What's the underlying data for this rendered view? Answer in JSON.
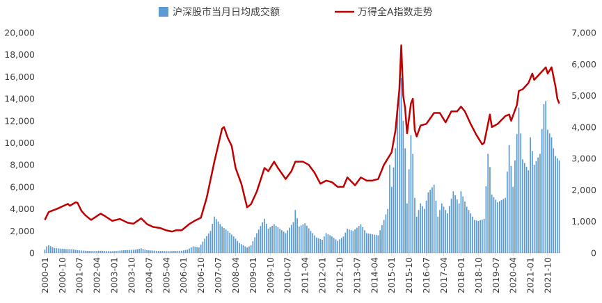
{
  "chart_data": {
    "type": "bar+line",
    "title": "",
    "legend": {
      "position": "top",
      "entries": [
        {
          "name": "沪深股市当月日均成交额",
          "color": "#5B9BD5",
          "kind": "bar"
        },
        {
          "name": "万得全A指数走势",
          "color": "#C00000",
          "kind": "line"
        }
      ]
    },
    "x_tick_labels": [
      "2000-01",
      "2000-10",
      "2001-07",
      "2002-04",
      "2003-01",
      "2003-10",
      "2004-07",
      "2005-04",
      "2006-01",
      "2006-10",
      "2007-07",
      "2008-04",
      "2009-01",
      "2009-10",
      "2010-07",
      "2011-04",
      "2012-01",
      "2012-10",
      "2013-07",
      "2014-04",
      "2015-01",
      "2015-10",
      "2016-07",
      "2017-04",
      "2018-01",
      "2018-10",
      "2019-07",
      "2020-04",
      "2021-01",
      "2021-10"
    ],
    "x_range": [
      "2000-01",
      "2022-04"
    ],
    "y_left": {
      "min": 0,
      "max": 20000,
      "step": 2000,
      "tick_labels": [
        "0",
        "2,000",
        "4,000",
        "6,000",
        "8,000",
        "10,000",
        "12,000",
        "14,000",
        "16,000",
        "18,000",
        "20,000"
      ]
    },
    "y_right": {
      "min": 0,
      "max": 7000,
      "step": 1000,
      "tick_labels": [
        "0",
        "1,000",
        "2,000",
        "3,000",
        "4,000",
        "5,000",
        "6,000",
        "7,000"
      ]
    },
    "series": [
      {
        "name": "沪深股市当月日均成交额",
        "axis": "left",
        "color": "#5B9BD5",
        "anchors": [
          [
            "2000-01",
            300
          ],
          [
            "2000-02",
            600
          ],
          [
            "2000-03",
            700
          ],
          [
            "2000-06",
            450
          ],
          [
            "2000-12",
            350
          ],
          [
            "2001-03",
            350
          ],
          [
            "2001-06",
            250
          ],
          [
            "2001-12",
            180
          ],
          [
            "2002-06",
            200
          ],
          [
            "2002-12",
            150
          ],
          [
            "2003-06",
            250
          ],
          [
            "2003-12",
            300
          ],
          [
            "2004-03",
            420
          ],
          [
            "2004-06",
            250
          ],
          [
            "2004-12",
            180
          ],
          [
            "2005-06",
            170
          ],
          [
            "2005-12",
            200
          ],
          [
            "2006-03",
            300
          ],
          [
            "2006-06",
            600
          ],
          [
            "2006-09",
            500
          ],
          [
            "2006-12",
            1300
          ],
          [
            "2007-03",
            2000
          ],
          [
            "2007-05",
            3300
          ],
          [
            "2007-09",
            2400
          ],
          [
            "2007-12",
            2000
          ],
          [
            "2008-03",
            1500
          ],
          [
            "2008-06",
            900
          ],
          [
            "2008-10",
            500
          ],
          [
            "2008-12",
            700
          ],
          [
            "2009-03",
            1800
          ],
          [
            "2009-07",
            3100
          ],
          [
            "2009-09",
            2200
          ],
          [
            "2009-12",
            2600
          ],
          [
            "2010-03",
            2200
          ],
          [
            "2010-06",
            1800
          ],
          [
            "2010-10",
            2800
          ],
          [
            "2010-11",
            3900
          ],
          [
            "2011-01",
            2400
          ],
          [
            "2011-04",
            2700
          ],
          [
            "2011-07",
            2000
          ],
          [
            "2011-10",
            1400
          ],
          [
            "2012-01",
            1200
          ],
          [
            "2012-03",
            1800
          ],
          [
            "2012-06",
            1500
          ],
          [
            "2012-09",
            1100
          ],
          [
            "2012-12",
            1500
          ],
          [
            "2013-02",
            2200
          ],
          [
            "2013-05",
            2000
          ],
          [
            "2013-09",
            2600
          ],
          [
            "2013-12",
            1800
          ],
          [
            "2014-03",
            1700
          ],
          [
            "2014-06",
            1600
          ],
          [
            "2014-09",
            3000
          ],
          [
            "2014-11",
            4000
          ],
          [
            "2014-12",
            8000
          ],
          [
            "2015-01",
            6000
          ],
          [
            "2015-03",
            9500
          ],
          [
            "2015-04",
            13500
          ],
          [
            "2015-05",
            15700
          ],
          [
            "2015-06",
            15900
          ],
          [
            "2015-07",
            12000
          ],
          [
            "2015-08",
            9500
          ],
          [
            "2015-09",
            4500
          ],
          [
            "2015-11",
            10700
          ],
          [
            "2015-12",
            9000
          ],
          [
            "2016-01",
            5000
          ],
          [
            "2016-02",
            3300
          ],
          [
            "2016-04",
            4500
          ],
          [
            "2016-06",
            4000
          ],
          [
            "2016-08",
            5500
          ],
          [
            "2016-11",
            6200
          ],
          [
            "2017-01",
            3300
          ],
          [
            "2017-03",
            4500
          ],
          [
            "2017-06",
            3600
          ],
          [
            "2017-09",
            5600
          ],
          [
            "2017-12",
            4500
          ],
          [
            "2018-01",
            5600
          ],
          [
            "2018-04",
            4200
          ],
          [
            "2018-08",
            3000
          ],
          [
            "2018-10",
            2900
          ],
          [
            "2019-01",
            3100
          ],
          [
            "2019-03",
            9000
          ],
          [
            "2019-04",
            7800
          ],
          [
            "2019-05",
            5300
          ],
          [
            "2019-08",
            4600
          ],
          [
            "2019-12",
            5000
          ],
          [
            "2020-02",
            9800
          ],
          [
            "2020-04",
            6000
          ],
          [
            "2020-07",
            13200
          ],
          [
            "2020-09",
            8500
          ],
          [
            "2020-12",
            7500
          ],
          [
            "2021-01",
            10500
          ],
          [
            "2021-03",
            8000
          ],
          [
            "2021-06",
            9000
          ],
          [
            "2021-08",
            13500
          ],
          [
            "2021-09",
            13800
          ],
          [
            "2021-10",
            11200
          ],
          [
            "2021-12",
            10500
          ],
          [
            "2022-01",
            9500
          ],
          [
            "2022-02",
            8800
          ],
          [
            "2022-04",
            8400
          ]
        ]
      },
      {
        "name": "万得全A指数走势",
        "axis": "right",
        "color": "#C00000",
        "anchors": [
          [
            "2000-01",
            1050
          ],
          [
            "2000-03",
            1300
          ],
          [
            "2000-08",
            1420
          ],
          [
            "2001-01",
            1560
          ],
          [
            "2001-02",
            1500
          ],
          [
            "2001-05",
            1610
          ],
          [
            "2001-06",
            1590
          ],
          [
            "2001-08",
            1340
          ],
          [
            "2001-10",
            1200
          ],
          [
            "2002-01",
            1050
          ],
          [
            "2002-03",
            1130
          ],
          [
            "2002-06",
            1250
          ],
          [
            "2002-08",
            1180
          ],
          [
            "2002-12",
            1020
          ],
          [
            "2003-04",
            1080
          ],
          [
            "2003-08",
            960
          ],
          [
            "2003-11",
            930
          ],
          [
            "2004-03",
            1100
          ],
          [
            "2004-06",
            920
          ],
          [
            "2004-09",
            830
          ],
          [
            "2005-01",
            790
          ],
          [
            "2005-04",
            720
          ],
          [
            "2005-07",
            680
          ],
          [
            "2005-09",
            720
          ],
          [
            "2005-12",
            720
          ],
          [
            "2006-04",
            920
          ],
          [
            "2006-07",
            1030
          ],
          [
            "2006-10",
            1120
          ],
          [
            "2007-01",
            1750
          ],
          [
            "2007-05",
            2900
          ],
          [
            "2007-09",
            3950
          ],
          [
            "2007-10",
            4000
          ],
          [
            "2007-12",
            3650
          ],
          [
            "2008-02",
            3400
          ],
          [
            "2008-04",
            2700
          ],
          [
            "2008-07",
            2200
          ],
          [
            "2008-10",
            1450
          ],
          [
            "2008-12",
            1550
          ],
          [
            "2009-03",
            1950
          ],
          [
            "2009-07",
            2700
          ],
          [
            "2009-09",
            2600
          ],
          [
            "2009-12",
            2900
          ],
          [
            "2010-02",
            2700
          ],
          [
            "2010-06",
            2350
          ],
          [
            "2010-09",
            2600
          ],
          [
            "2010-11",
            2900
          ],
          [
            "2011-03",
            2900
          ],
          [
            "2011-06",
            2800
          ],
          [
            "2011-09",
            2550
          ],
          [
            "2011-12",
            2200
          ],
          [
            "2012-03",
            2300
          ],
          [
            "2012-06",
            2250
          ],
          [
            "2012-09",
            2100
          ],
          [
            "2012-12",
            2100
          ],
          [
            "2013-02",
            2400
          ],
          [
            "2013-06",
            2150
          ],
          [
            "2013-09",
            2400
          ],
          [
            "2013-12",
            2300
          ],
          [
            "2014-03",
            2300
          ],
          [
            "2014-06",
            2350
          ],
          [
            "2014-09",
            2800
          ],
          [
            "2014-12",
            3100
          ],
          [
            "2015-01",
            3200
          ],
          [
            "2015-03",
            3900
          ],
          [
            "2015-05",
            5200
          ],
          [
            "2015-06",
            6600
          ],
          [
            "2015-07",
            5000
          ],
          [
            "2015-08",
            4600
          ],
          [
            "2015-09",
            3800
          ],
          [
            "2015-11",
            4750
          ],
          [
            "2015-12",
            4900
          ],
          [
            "2016-01",
            3900
          ],
          [
            "2016-02",
            3700
          ],
          [
            "2016-04",
            4050
          ],
          [
            "2016-07",
            4100
          ],
          [
            "2016-11",
            4450
          ],
          [
            "2017-02",
            4450
          ],
          [
            "2017-05",
            4150
          ],
          [
            "2017-08",
            4500
          ],
          [
            "2017-11",
            4500
          ],
          [
            "2018-01",
            4650
          ],
          [
            "2018-03",
            4500
          ],
          [
            "2018-06",
            4100
          ],
          [
            "2018-09",
            3750
          ],
          [
            "2018-12",
            3450
          ],
          [
            "2019-01",
            3500
          ],
          [
            "2019-04",
            4400
          ],
          [
            "2019-05",
            4000
          ],
          [
            "2019-08",
            4100
          ],
          [
            "2019-12",
            4350
          ],
          [
            "2020-02",
            4400
          ],
          [
            "2020-03",
            4200
          ],
          [
            "2020-06",
            4700
          ],
          [
            "2020-07",
            5150
          ],
          [
            "2020-09",
            5200
          ],
          [
            "2020-12",
            5400
          ],
          [
            "2021-02",
            5700
          ],
          [
            "2021-03",
            5500
          ],
          [
            "2021-06",
            5700
          ],
          [
            "2021-09",
            5900
          ],
          [
            "2021-10",
            5700
          ],
          [
            "2021-12",
            5900
          ],
          [
            "2022-01",
            5600
          ],
          [
            "2022-02",
            5300
          ],
          [
            "2022-03",
            4900
          ],
          [
            "2022-04",
            4750
          ]
        ]
      }
    ]
  }
}
